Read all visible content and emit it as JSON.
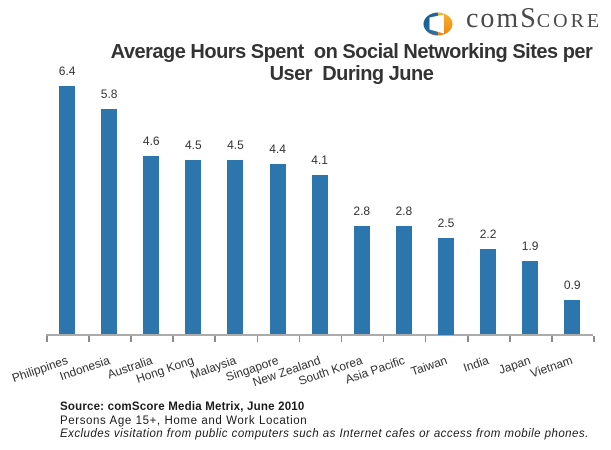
{
  "logo": {
    "icon_name": "comscore-logo-icon",
    "text_com": "com",
    "text_cap": "S",
    "text_rest": "CORE",
    "colors": {
      "blue": "#1d6ba5",
      "blue_dark": "#14568c",
      "orange": "#f29213",
      "orange_light": "#f7b52c",
      "red": "#cc4517",
      "text": "#4a4a4a"
    }
  },
  "title": "Average Hours Spent  on Social Networking Sites per\nUser  During June",
  "chart_data": {
    "type": "bar",
    "title": "Average Hours Spent on Social Networking Sites per User During June",
    "categories": [
      "Philippines",
      "Indonesia",
      "Australia",
      "Hong Kong",
      "Malaysia",
      "Singapore",
      "New Zealand",
      "South Korea",
      "Asia Pacific",
      "Taiwan",
      "India",
      "Japan",
      "Vietnam"
    ],
    "values": [
      6.4,
      5.8,
      4.6,
      4.5,
      4.5,
      4.4,
      4.1,
      2.8,
      2.8,
      2.5,
      2.2,
      1.9,
      0.9
    ],
    "value_labels": [
      "6.4",
      "5.8",
      "4.6",
      "4.5",
      "4.5",
      "4.4",
      "4.1",
      "2.8",
      "2.8",
      "2.5",
      "2.2",
      "1.9",
      "0.9"
    ],
    "xlabel": "",
    "ylabel": "",
    "ylim": [
      0,
      7
    ],
    "grid": false,
    "legend": "none",
    "bar_color": "#2D76AD",
    "axis_line_color": "#ababab",
    "tick_color": "#8c8c8c",
    "label_color": "#303030"
  },
  "source": {
    "line1": "Source: comScore Media Metrix, June 2010",
    "line2": "Persons Age 15+, Home and Work Location",
    "line3": "Excludes visitation from public computers such as Internet cafes or access from mobile phones."
  }
}
